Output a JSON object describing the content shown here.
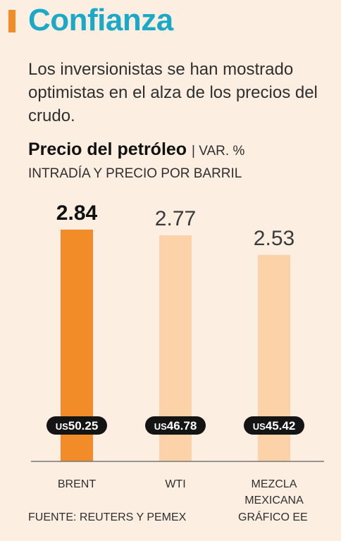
{
  "header": {
    "title": "Confianza",
    "subtitle": "Los inversionistas se han mostrado optimistas en el alza de los precios del crudo.",
    "accent_color": "#f28c28",
    "title_color": "#1aa9c6"
  },
  "chart_data": {
    "type": "bar",
    "title": "Precio del petróleo",
    "subtitle_inline": "| VAR. %",
    "subtitle_line2": "INTRADÍA Y PRECIO POR BARRIL",
    "categories": [
      "BRENT",
      "WTI",
      "MEZCLA MEXICANA"
    ],
    "category_lines": [
      [
        "BRENT"
      ],
      [
        "WTI"
      ],
      [
        "MEZCLA",
        "MEXICANA"
      ]
    ],
    "values": [
      2.84,
      2.77,
      2.53
    ],
    "value_labels": [
      "2.84",
      "2.77",
      "2.53"
    ],
    "price_labels": [
      "US50.25",
      "US46.78",
      "US45.42"
    ],
    "price_parts": [
      [
        "US",
        "50.25"
      ],
      [
        "US",
        "46.78"
      ],
      [
        "US",
        "45.42"
      ]
    ],
    "ylim": [
      0,
      3.15
    ],
    "colors": [
      "#f28c28",
      "#fcd2a8",
      "#fcd2a8"
    ],
    "highlight_index": 0
  },
  "footer": {
    "source": "FUENTE: REUTERS Y PEMEX",
    "credit": "GRÁFICO EE"
  }
}
